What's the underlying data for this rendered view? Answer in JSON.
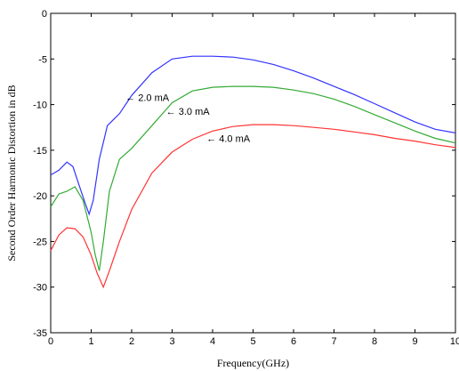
{
  "chart_data": {
    "type": "line",
    "title": "",
    "xlabel": "Frequency(GHz)",
    "ylabel": "Second Order Harmonic Distortion in dB",
    "xlim": [
      0,
      10
    ],
    "ylim": [
      -35,
      0
    ],
    "xticks": [
      0,
      1,
      2,
      3,
      4,
      5,
      6,
      7,
      8,
      9,
      10
    ],
    "yticks": [
      0,
      -5,
      -10,
      -15,
      -20,
      -25,
      -30,
      -35
    ],
    "grid": false,
    "legend": "none",
    "series": [
      {
        "name": "2.0 mA",
        "color": "#3333ff",
        "x": [
          0,
          0.2,
          0.4,
          0.55,
          0.7,
          0.85,
          0.95,
          1.05,
          1.2,
          1.4,
          1.7,
          2.0,
          2.5,
          3.0,
          3.5,
          4.0,
          4.5,
          5.0,
          5.5,
          6.0,
          6.5,
          7.0,
          7.5,
          8.0,
          8.5,
          9.0,
          9.5,
          10.0
        ],
        "y": [
          -17.7,
          -17.2,
          -16.3,
          -16.8,
          -18.8,
          -20.8,
          -22.0,
          -20.5,
          -16.0,
          -12.3,
          -11.0,
          -9.0,
          -6.5,
          -5.0,
          -4.7,
          -4.7,
          -4.8,
          -5.1,
          -5.6,
          -6.3,
          -7.1,
          -8.0,
          -8.9,
          -9.9,
          -10.9,
          -11.9,
          -12.7,
          -13.1
        ]
      },
      {
        "name": "3.0 mA",
        "color": "#33aa33",
        "x": [
          0,
          0.2,
          0.4,
          0.6,
          0.8,
          1.0,
          1.1,
          1.2,
          1.3,
          1.45,
          1.7,
          2.0,
          2.5,
          3.0,
          3.5,
          4.0,
          4.5,
          5.0,
          5.5,
          6.0,
          6.5,
          7.0,
          7.5,
          8.0,
          8.5,
          9.0,
          9.5,
          10.0
        ],
        "y": [
          -21.2,
          -19.8,
          -19.5,
          -19.0,
          -20.5,
          -24.0,
          -26.5,
          -28.2,
          -25.0,
          -19.5,
          -16.0,
          -14.8,
          -12.3,
          -9.8,
          -8.5,
          -8.1,
          -8.0,
          -8.0,
          -8.1,
          -8.4,
          -8.8,
          -9.4,
          -10.2,
          -11.1,
          -12.0,
          -12.9,
          -13.7,
          -14.2
        ]
      },
      {
        "name": "4.0 mA",
        "color": "#ff3333",
        "x": [
          0,
          0.2,
          0.4,
          0.6,
          0.8,
          1.0,
          1.15,
          1.3,
          1.45,
          1.7,
          2.0,
          2.5,
          3.0,
          3.5,
          4.0,
          4.5,
          5.0,
          5.5,
          6.0,
          6.5,
          7.0,
          7.5,
          8.0,
          8.5,
          9.0,
          9.5,
          10.0
        ],
        "y": [
          -26.0,
          -24.3,
          -23.5,
          -23.6,
          -24.5,
          -26.5,
          -28.5,
          -30.0,
          -28.2,
          -25.0,
          -21.5,
          -17.5,
          -15.2,
          -13.8,
          -12.9,
          -12.4,
          -12.2,
          -12.2,
          -12.3,
          -12.5,
          -12.7,
          -13.0,
          -13.3,
          -13.7,
          -14.0,
          -14.4,
          -14.7
        ]
      }
    ],
    "annotations": [
      {
        "text": "← 2.0 mA",
        "x": 1.85,
        "y": -9.2
      },
      {
        "text": "← 3.0 mA",
        "x": 2.85,
        "y": -10.7
      },
      {
        "text": "← 4.0 mA",
        "x": 3.85,
        "y": -13.7
      }
    ]
  }
}
